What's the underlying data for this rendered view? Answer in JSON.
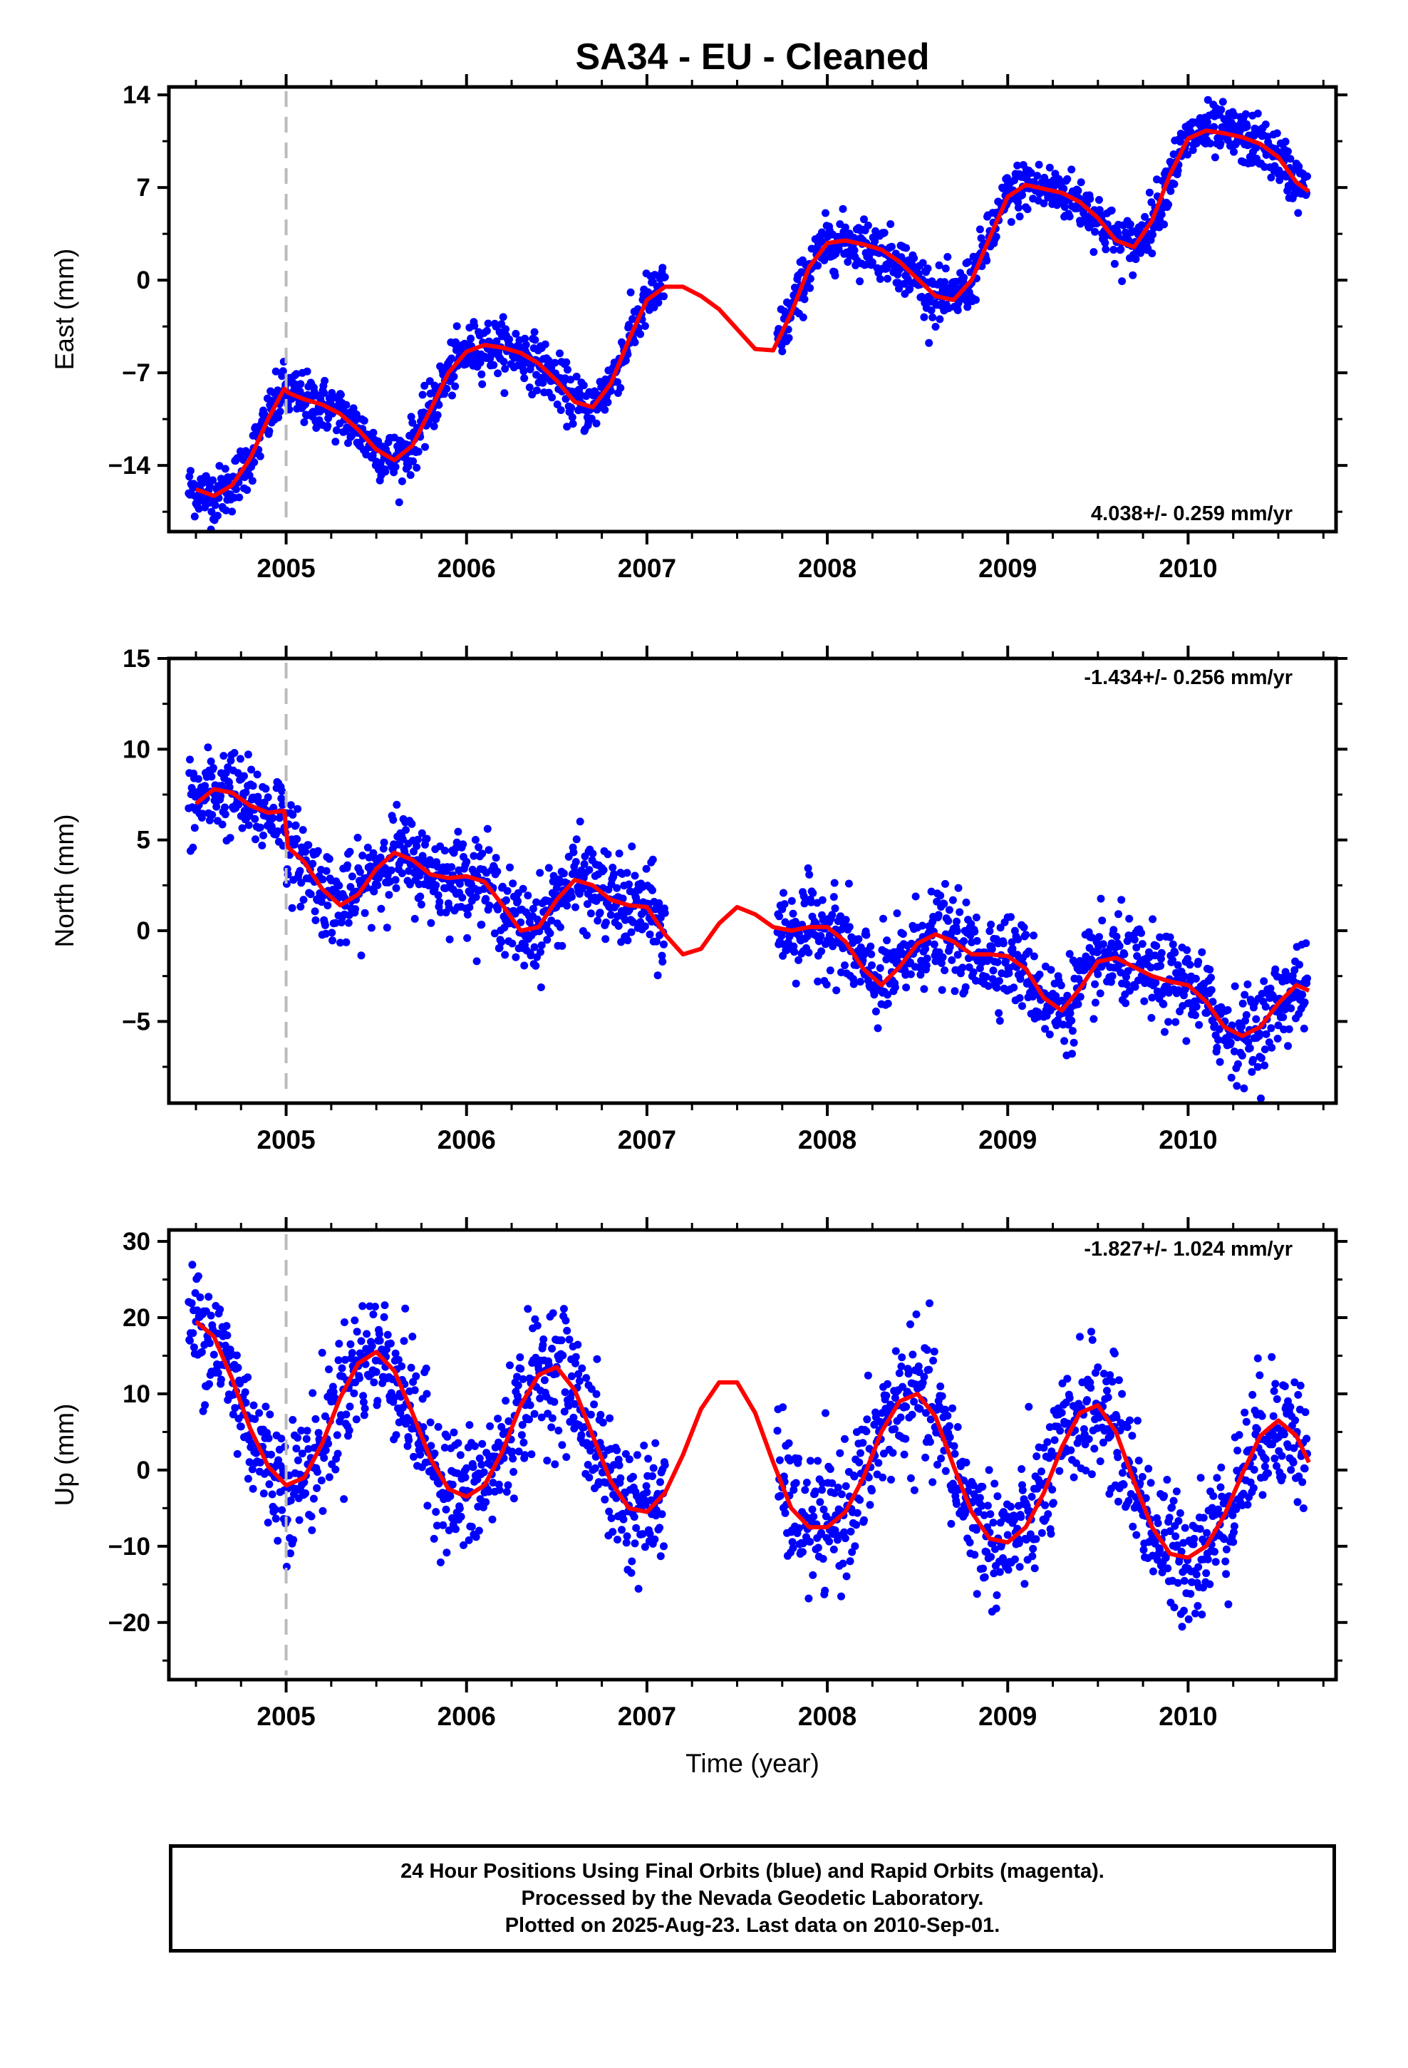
{
  "title": "SA34  - EU - Cleaned",
  "xlabel": "Time (year)",
  "footer": {
    "line1": "24 Hour Positions Using Final Orbits (blue) and Rapid Orbits (magenta).",
    "line2": "Processed by the Nevada Geodetic Laboratory.",
    "line3": "Plotted on 2025-Aug-23. Last data on 2010-Sep-01."
  },
  "colors": {
    "points": "#0000ff",
    "fit": "#ff0000",
    "event_line": "#bbbbbb",
    "axes": "#000000"
  },
  "chart_data": [
    {
      "type": "scatter",
      "ylabel": "East (mm)",
      "rate_label": "4.038+/- 0.259 mm/yr",
      "xlim": [
        2004.35,
        2010.82
      ],
      "ylim": [
        -19.0,
        14.6
      ],
      "yticks": [
        -14,
        -7,
        0,
        7,
        14
      ],
      "ytick_labels": [
        "−14",
        "−7",
        "0",
        "7",
        "14"
      ],
      "xticks": [
        2005,
        2006,
        2007,
        2008,
        2009,
        2010
      ],
      "xtick_labels": [
        "2005",
        "2006",
        "2007",
        "2008",
        "2009",
        "2010"
      ],
      "event_line_x": 2005.0,
      "fit_x": [
        2004.5,
        2004.6,
        2004.7,
        2004.8,
        2004.9,
        2004.99,
        2005.01,
        2005.1,
        2005.2,
        2005.3,
        2005.4,
        2005.5,
        2005.6,
        2005.7,
        2005.8,
        2005.9,
        2006.0,
        2006.1,
        2006.2,
        2006.3,
        2006.4,
        2006.5,
        2006.6,
        2006.7,
        2006.8,
        2006.9,
        2007.0,
        2007.1,
        2007.2,
        2007.3,
        2007.4,
        2007.5,
        2007.6,
        2007.7,
        2007.8,
        2007.9,
        2008.0,
        2008.1,
        2008.2,
        2008.3,
        2008.4,
        2008.5,
        2008.6,
        2008.7,
        2008.8,
        2008.9,
        2009.0,
        2009.1,
        2009.2,
        2009.3,
        2009.4,
        2009.5,
        2009.6,
        2009.7,
        2009.8,
        2009.9,
        2010.0,
        2010.1,
        2010.2,
        2010.3,
        2010.4,
        2010.5,
        2010.6,
        2010.67
      ],
      "fit_y": [
        -15.8,
        -16.3,
        -15.5,
        -13.5,
        -10.5,
        -8.2,
        -8.5,
        -9.0,
        -9.4,
        -10.1,
        -11.3,
        -12.8,
        -13.6,
        -12.5,
        -9.8,
        -7.0,
        -5.4,
        -4.9,
        -5.1,
        -5.5,
        -6.3,
        -7.6,
        -9.2,
        -9.6,
        -7.8,
        -4.5,
        -1.5,
        -0.5,
        -0.5,
        -1.2,
        -2.2,
        -3.7,
        -5.2,
        -5.3,
        -2.5,
        1.0,
        2.8,
        3.0,
        2.7,
        2.3,
        1.4,
        0.1,
        -1.2,
        -1.5,
        0.0,
        3.2,
        6.3,
        7.2,
        6.9,
        6.6,
        5.9,
        4.7,
        3.0,
        2.5,
        4.5,
        8.0,
        10.7,
        11.3,
        11.1,
        10.8,
        10.3,
        9.3,
        7.4,
        6.7
      ]
    },
    {
      "type": "scatter",
      "ylabel": "North (mm)",
      "rate_label": "-1.434+/- 0.256 mm/yr",
      "xlim": [
        2004.35,
        2010.82
      ],
      "ylim": [
        -9.5,
        15.0
      ],
      "yticks": [
        -5,
        0,
        5,
        10,
        15
      ],
      "ytick_labels": [
        "−5",
        "0",
        "5",
        "10",
        "15"
      ],
      "xticks": [
        2005,
        2006,
        2007,
        2008,
        2009,
        2010
      ],
      "xtick_labels": [
        "2005",
        "2006",
        "2007",
        "2008",
        "2009",
        "2010"
      ],
      "event_line_x": 2005.0,
      "fit_x": [
        2004.5,
        2004.6,
        2004.7,
        2004.8,
        2004.9,
        2004.99,
        2005.01,
        2005.1,
        2005.2,
        2005.3,
        2005.4,
        2005.5,
        2005.6,
        2005.7,
        2005.8,
        2005.9,
        2006.0,
        2006.1,
        2006.2,
        2006.3,
        2006.4,
        2006.5,
        2006.6,
        2006.7,
        2006.8,
        2006.9,
        2007.0,
        2007.1,
        2007.2,
        2007.3,
        2007.4,
        2007.5,
        2007.6,
        2007.7,
        2007.8,
        2007.9,
        2008.0,
        2008.1,
        2008.2,
        2008.3,
        2008.4,
        2008.5,
        2008.6,
        2008.7,
        2008.8,
        2008.9,
        2009.0,
        2009.1,
        2009.2,
        2009.3,
        2009.4,
        2009.5,
        2009.6,
        2009.7,
        2009.8,
        2009.9,
        2010.0,
        2010.1,
        2010.2,
        2010.3,
        2010.4,
        2010.5,
        2010.6,
        2010.67
      ],
      "fit_y": [
        7.0,
        7.8,
        7.6,
        6.9,
        6.5,
        6.6,
        4.6,
        3.8,
        2.3,
        1.4,
        2.0,
        3.4,
        4.3,
        3.9,
        3.1,
        2.9,
        3.0,
        2.7,
        1.4,
        0.0,
        0.2,
        1.7,
        2.8,
        2.5,
        1.7,
        1.4,
        1.3,
        -0.2,
        -1.3,
        -1.0,
        0.4,
        1.3,
        0.9,
        0.2,
        0.0,
        0.2,
        0.2,
        -0.6,
        -2.1,
        -3.0,
        -2.0,
        -0.7,
        -0.2,
        -0.6,
        -1.3,
        -1.3,
        -1.4,
        -2.1,
        -3.7,
        -4.4,
        -3.2,
        -1.7,
        -1.5,
        -2.0,
        -2.5,
        -2.8,
        -3.0,
        -3.9,
        -5.3,
        -5.8,
        -5.3,
        -4.0,
        -3.0,
        -3.3
      ]
    },
    {
      "type": "scatter",
      "ylabel": "Up (mm)",
      "rate_label": "-1.827+/- 1.024 mm/yr",
      "xlim": [
        2004.35,
        2010.82
      ],
      "ylim": [
        -27.5,
        31.5
      ],
      "yticks": [
        -20,
        -10,
        0,
        10,
        20,
        30
      ],
      "ytick_labels": [
        "−20",
        "−10",
        "0",
        "10",
        "20",
        "30"
      ],
      "xticks": [
        2005,
        2006,
        2007,
        2008,
        2009,
        2010
      ],
      "xtick_labels": [
        "2005",
        "2006",
        "2007",
        "2008",
        "2009",
        "2010"
      ],
      "event_line_x": 2005.0,
      "fit_x": [
        2004.5,
        2004.6,
        2004.7,
        2004.8,
        2004.9,
        2005.0,
        2005.1,
        2005.2,
        2005.3,
        2005.4,
        2005.5,
        2005.6,
        2005.7,
        2005.8,
        2005.9,
        2006.0,
        2006.1,
        2006.2,
        2006.3,
        2006.4,
        2006.5,
        2006.6,
        2006.7,
        2006.8,
        2006.9,
        2007.0,
        2007.1,
        2007.2,
        2007.3,
        2007.4,
        2007.5,
        2007.6,
        2007.7,
        2007.8,
        2007.9,
        2008.0,
        2008.1,
        2008.2,
        2008.3,
        2008.4,
        2008.5,
        2008.6,
        2008.7,
        2008.8,
        2008.9,
        2009.0,
        2009.1,
        2009.2,
        2009.3,
        2009.4,
        2009.5,
        2009.6,
        2009.7,
        2009.8,
        2009.9,
        2010.0,
        2010.1,
        2010.2,
        2010.3,
        2010.4,
        2010.5,
        2010.6,
        2010.67
      ],
      "fit_y": [
        19.5,
        17.5,
        12.0,
        5.5,
        0.5,
        -2.0,
        -1.0,
        3.5,
        9.5,
        14.0,
        15.5,
        13.0,
        7.5,
        1.5,
        -2.5,
        -3.5,
        -2.0,
        2.5,
        8.5,
        12.5,
        13.5,
        10.5,
        4.5,
        -1.5,
        -5.0,
        -5.5,
        -3.0,
        2.0,
        8.0,
        11.5,
        11.5,
        7.5,
        1.0,
        -5.0,
        -7.5,
        -7.5,
        -5.5,
        -1.0,
        5.0,
        9.0,
        10.0,
        7.0,
        0.5,
        -5.5,
        -9.0,
        -9.5,
        -7.5,
        -3.0,
        3.0,
        7.5,
        8.5,
        5.0,
        -1.5,
        -7.5,
        -11.0,
        -11.5,
        -10.0,
        -6.0,
        -0.5,
        4.5,
        6.5,
        4.5,
        1.0
      ]
    }
  ]
}
